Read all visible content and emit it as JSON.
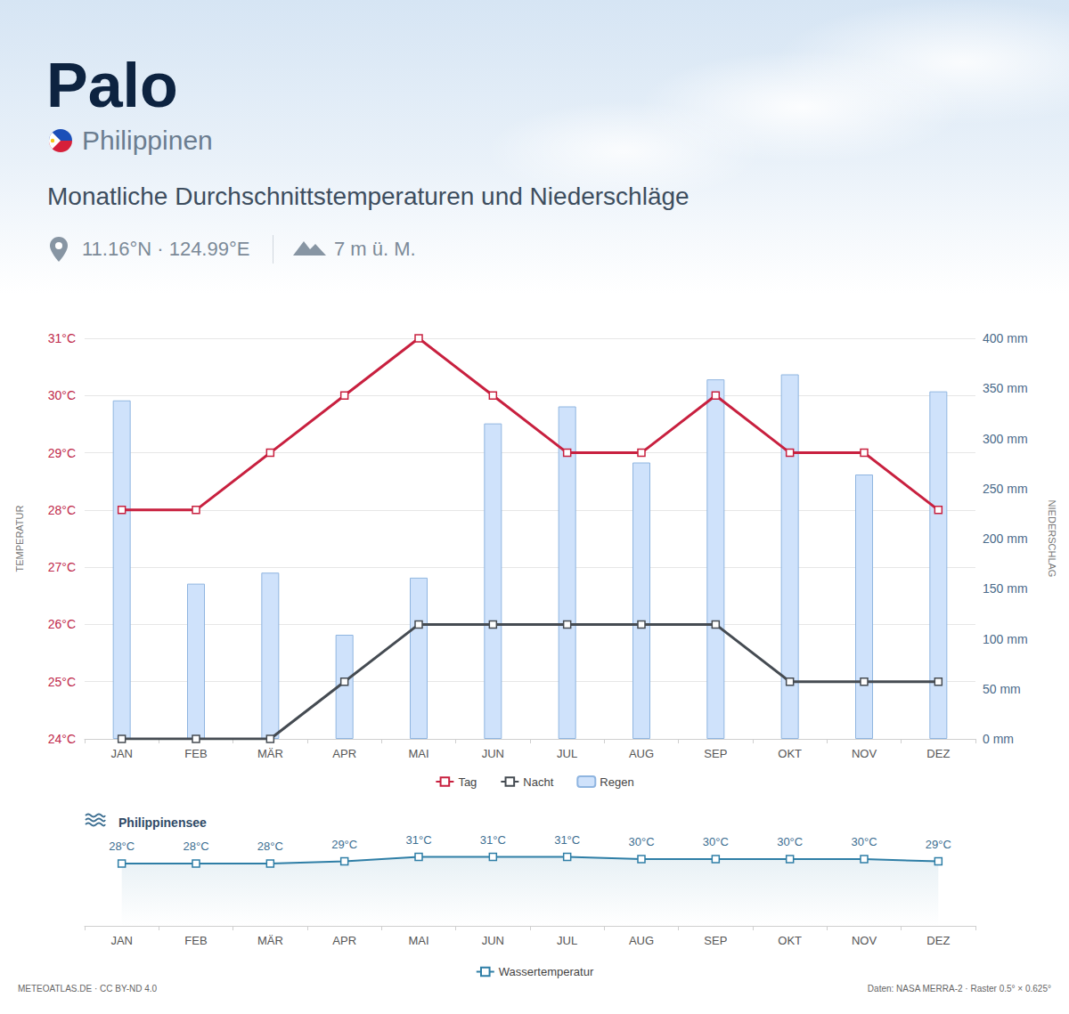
{
  "header": {
    "title": "Palo",
    "country": "Philippinen",
    "subtitle": "Monatliche Durchschnittstemperaturen und Niederschläge",
    "coordinates": "11.16°N · 124.99°E",
    "elevation": "7 m ü. M."
  },
  "chart_data": [
    {
      "type": "line",
      "categories": [
        "JAN",
        "FEB",
        "MÄR",
        "APR",
        "MAI",
        "JUN",
        "JUL",
        "AUG",
        "SEP",
        "OKT",
        "NOV",
        "DEZ"
      ],
      "y_label": "TEMPERATUR",
      "y2_label": "NIEDERSCHLAG",
      "ylim": [
        24,
        31
      ],
      "yticks": [
        {
          "value": 24,
          "label": "24°C"
        },
        {
          "value": 25,
          "label": "25°C"
        },
        {
          "value": 26,
          "label": "26°C"
        },
        {
          "value": 27,
          "label": "27°C"
        },
        {
          "value": 28,
          "label": "28°C"
        },
        {
          "value": 29,
          "label": "29°C"
        },
        {
          "value": 30,
          "label": "30°C"
        },
        {
          "value": 31,
          "label": "31°C"
        }
      ],
      "y2lim": [
        0,
        400
      ],
      "y2ticks": [
        {
          "value": 0,
          "label": "0 mm"
        },
        {
          "value": 50,
          "label": "50 mm"
        },
        {
          "value": 100,
          "label": "100 mm"
        },
        {
          "value": 150,
          "label": "150 mm"
        },
        {
          "value": 200,
          "label": "200 mm"
        },
        {
          "value": 250,
          "label": "250 mm"
        },
        {
          "value": 300,
          "label": "300 mm"
        },
        {
          "value": 350,
          "label": "350 mm"
        },
        {
          "value": 400,
          "label": "400 mm"
        }
      ],
      "grid": true,
      "legend": "bottom",
      "series": [
        {
          "name": "Tag",
          "type": "line",
          "color": "#c8203f",
          "marker": "square",
          "line_style": "solid",
          "values": [
            28,
            28,
            29,
            30,
            31,
            30,
            29,
            29,
            30,
            29,
            29,
            28
          ]
        },
        {
          "name": "Nacht",
          "type": "line",
          "color": "#454b52",
          "marker": "square",
          "line_style": "solid",
          "values": [
            24,
            24,
            24,
            25,
            26,
            26,
            26,
            26,
            26,
            25,
            25,
            25
          ]
        },
        {
          "name": "Regen",
          "type": "bar",
          "axis": "y2",
          "color": "#cfe2fb",
          "values": [
            338,
            155,
            166,
            104,
            161,
            315,
            332,
            276,
            359,
            364,
            264,
            347
          ]
        }
      ]
    },
    {
      "type": "line",
      "title": "Philippinensee",
      "categories": [
        "JAN",
        "FEB",
        "MÄR",
        "APR",
        "MAI",
        "JUN",
        "JUL",
        "AUG",
        "SEP",
        "OKT",
        "NOV",
        "DEZ"
      ],
      "ylim": [
        0,
        40
      ],
      "grid": false,
      "tick_labels": "x",
      "data_labels": true,
      "legend": "bottom",
      "series": [
        {
          "name": "Wassertemperatur",
          "color": "#2e7ea6",
          "marker": "square",
          "line_style": "solid",
          "values": [
            28,
            28,
            28,
            29,
            31,
            31,
            31,
            30,
            30,
            30,
            30,
            29
          ],
          "value_labels": [
            "28°C",
            "28°C",
            "28°C",
            "29°C",
            "31°C",
            "31°C",
            "31°C",
            "30°C",
            "30°C",
            "30°C",
            "30°C",
            "29°C"
          ]
        }
      ]
    }
  ],
  "footer": {
    "source": "METEOATLAS.DE · CC BY-ND 4.0",
    "data": "Daten: NASA MERRA-2 · Raster 0.5° × 0.625°"
  }
}
